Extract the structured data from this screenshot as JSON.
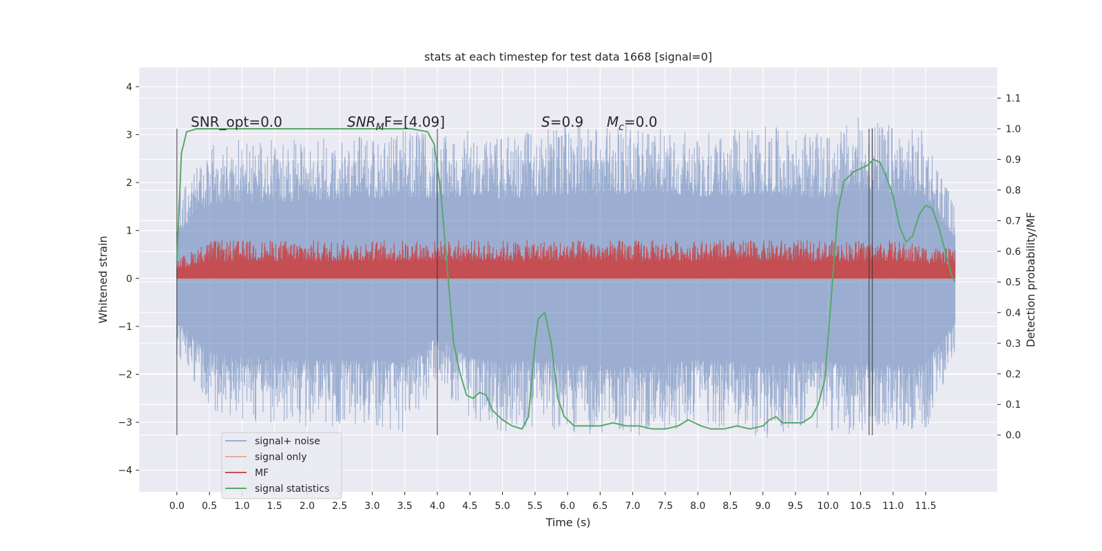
{
  "chart_data": {
    "type": "line",
    "title": "stats at each timestep for test data 1668 [signal=0]",
    "xlabel": "Time (s)",
    "ylabel": "Whitened strain",
    "y2label": "Detection probability/MF",
    "xlim": [
      -0.58,
      12.6
    ],
    "ylim": [
      -4.45,
      4.4
    ],
    "y2lim": [
      -0.185,
      1.2
    ],
    "x_ticks": [
      0.0,
      0.5,
      1.0,
      1.5,
      2.0,
      2.5,
      3.0,
      3.5,
      4.0,
      4.5,
      5.0,
      5.5,
      6.0,
      6.5,
      7.0,
      7.5,
      8.0,
      8.5,
      9.0,
      9.5,
      10.0,
      10.5,
      11.0,
      11.5
    ],
    "x_tick_labels": [
      "0.0",
      "0.5",
      "1.0",
      "1.5",
      "2.0",
      "2.5",
      "3.0",
      "3.5",
      "4.0",
      "4.5",
      "5.0",
      "5.5",
      "6.0",
      "6.5",
      "7.0",
      "7.5",
      "8.0",
      "8.5",
      "9.0",
      "9.5",
      "10.0",
      "10.5",
      "11.0",
      "11.5"
    ],
    "y_ticks": [
      -4,
      -3,
      -2,
      -1,
      0,
      1,
      2,
      3,
      4
    ],
    "y_tick_labels": [
      "−4",
      "−3",
      "−2",
      "−1",
      "0",
      "1",
      "2",
      "3",
      "4"
    ],
    "y2_ticks": [
      0.0,
      0.1,
      0.2,
      0.3,
      0.4,
      0.5,
      0.6,
      0.7,
      0.8,
      0.9,
      1.0,
      1.1
    ],
    "y2_tick_labels": [
      "0.0",
      "0.1",
      "0.2",
      "0.3",
      "0.4",
      "0.5",
      "0.6",
      "0.7",
      "0.8",
      "0.9",
      "1.0",
      "1.1"
    ],
    "grid": true,
    "legend_position": "lower-left",
    "annotations": {
      "snr_opt": "SNR_opt=0.0",
      "snr_mf_sym": "SNR",
      "snr_mf_sub": "M",
      "snr_mf_rest": "F=[4.09]",
      "s_sym": "S",
      "s_rest": "=0.9",
      "mc_sym": "M",
      "mc_sub": "c",
      "mc_rest": "=0.0"
    },
    "vlines_x": [
      0.0,
      4.0,
      10.63,
      10.68
    ],
    "series": [
      {
        "name": "signal+ noise",
        "color": "#4c72b0",
        "style": "filled-noise",
        "x_range": [
          0.0,
          11.95
        ],
        "upper_envelope": [
          [
            0.0,
            1.7
          ],
          [
            0.5,
            2.8
          ],
          [
            1.0,
            2.9
          ],
          [
            1.5,
            2.9
          ],
          [
            2.0,
            2.9
          ],
          [
            2.5,
            3.0
          ],
          [
            3.0,
            3.0
          ],
          [
            3.5,
            3.1
          ],
          [
            4.0,
            3.0
          ],
          [
            4.5,
            3.1
          ],
          [
            5.0,
            3.0
          ],
          [
            5.5,
            3.1
          ],
          [
            6.0,
            3.2
          ],
          [
            6.5,
            3.2
          ],
          [
            7.0,
            3.2
          ],
          [
            7.5,
            3.2
          ],
          [
            8.0,
            3.1
          ],
          [
            8.5,
            3.1
          ],
          [
            9.0,
            3.2
          ],
          [
            9.5,
            3.1
          ],
          [
            10.0,
            3.0
          ],
          [
            10.5,
            3.4
          ],
          [
            11.0,
            3.2
          ],
          [
            11.5,
            3.1
          ],
          [
            11.95,
            1.5
          ]
        ],
        "lower_envelope": [
          [
            0.0,
            -1.6
          ],
          [
            0.5,
            -2.8
          ],
          [
            1.0,
            -3.0
          ],
          [
            1.5,
            -3.0
          ],
          [
            2.0,
            -3.1
          ],
          [
            2.5,
            -3.1
          ],
          [
            3.0,
            -3.1
          ],
          [
            3.5,
            -3.2
          ],
          [
            4.0,
            -2.2
          ],
          [
            4.5,
            -3.0
          ],
          [
            5.0,
            -3.2
          ],
          [
            5.5,
            -3.1
          ],
          [
            6.0,
            -3.2
          ],
          [
            6.5,
            -3.3
          ],
          [
            7.0,
            -3.3
          ],
          [
            7.5,
            -3.2
          ],
          [
            8.0,
            -3.1
          ],
          [
            8.5,
            -3.1
          ],
          [
            9.0,
            -3.4
          ],
          [
            9.5,
            -3.1
          ],
          [
            10.0,
            -3.2
          ],
          [
            10.5,
            -3.3
          ],
          [
            11.0,
            -3.2
          ],
          [
            11.5,
            -3.2
          ],
          [
            11.95,
            -1.7
          ]
        ]
      },
      {
        "name": "signal only",
        "color": "#dd8452",
        "x": [
          0.0,
          11.95
        ],
        "y": [
          0.0,
          0.0
        ]
      },
      {
        "name": "MF",
        "color": "#c44e52",
        "style": "filled-noise",
        "x_range": [
          0.0,
          11.95
        ],
        "upper_envelope": [
          [
            0.0,
            0.4
          ],
          [
            0.5,
            0.8
          ],
          [
            1.0,
            0.8
          ],
          [
            2.0,
            0.8
          ],
          [
            3.0,
            0.8
          ],
          [
            4.0,
            0.8
          ],
          [
            5.0,
            0.8
          ],
          [
            6.0,
            0.8
          ],
          [
            7.0,
            0.8
          ],
          [
            8.0,
            0.8
          ],
          [
            9.0,
            0.8
          ],
          [
            10.0,
            0.8
          ],
          [
            11.0,
            0.8
          ],
          [
            11.95,
            0.6
          ]
        ],
        "lower_envelope": [
          [
            0.0,
            0.0
          ],
          [
            11.95,
            0.0
          ]
        ]
      },
      {
        "name": "signal statistics",
        "color": "#55a868",
        "axis": "right",
        "x": [
          0.0,
          0.07,
          0.15,
          0.3,
          1.0,
          2.0,
          3.0,
          3.6,
          3.85,
          3.95,
          4.05,
          4.15,
          4.25,
          4.35,
          4.45,
          4.55,
          4.65,
          4.75,
          4.85,
          5.0,
          5.15,
          5.3,
          5.4,
          5.5,
          5.55,
          5.65,
          5.75,
          5.85,
          5.95,
          6.1,
          6.3,
          6.5,
          6.7,
          6.9,
          7.1,
          7.3,
          7.5,
          7.7,
          7.85,
          7.95,
          8.05,
          8.2,
          8.4,
          8.6,
          8.8,
          9.0,
          9.1,
          9.2,
          9.3,
          9.45,
          9.6,
          9.75,
          9.85,
          9.95,
          10.05,
          10.15,
          10.25,
          10.4,
          10.5,
          10.6,
          10.7,
          10.8,
          10.9,
          11.0,
          11.1,
          11.2,
          11.3,
          11.4,
          11.5,
          11.6,
          11.7,
          11.8,
          11.9,
          11.95
        ],
        "y": [
          0.57,
          0.92,
          0.99,
          1.0,
          1.0,
          1.0,
          1.0,
          1.0,
          0.99,
          0.95,
          0.8,
          0.55,
          0.3,
          0.2,
          0.13,
          0.12,
          0.14,
          0.13,
          0.08,
          0.05,
          0.03,
          0.02,
          0.06,
          0.3,
          0.38,
          0.4,
          0.3,
          0.12,
          0.06,
          0.03,
          0.03,
          0.03,
          0.04,
          0.03,
          0.03,
          0.02,
          0.02,
          0.03,
          0.05,
          0.04,
          0.03,
          0.02,
          0.02,
          0.03,
          0.02,
          0.03,
          0.05,
          0.06,
          0.04,
          0.04,
          0.04,
          0.06,
          0.1,
          0.18,
          0.45,
          0.73,
          0.83,
          0.86,
          0.87,
          0.88,
          0.9,
          0.89,
          0.84,
          0.78,
          0.68,
          0.63,
          0.65,
          0.72,
          0.75,
          0.74,
          0.68,
          0.6,
          0.52,
          0.5
        ]
      }
    ]
  }
}
